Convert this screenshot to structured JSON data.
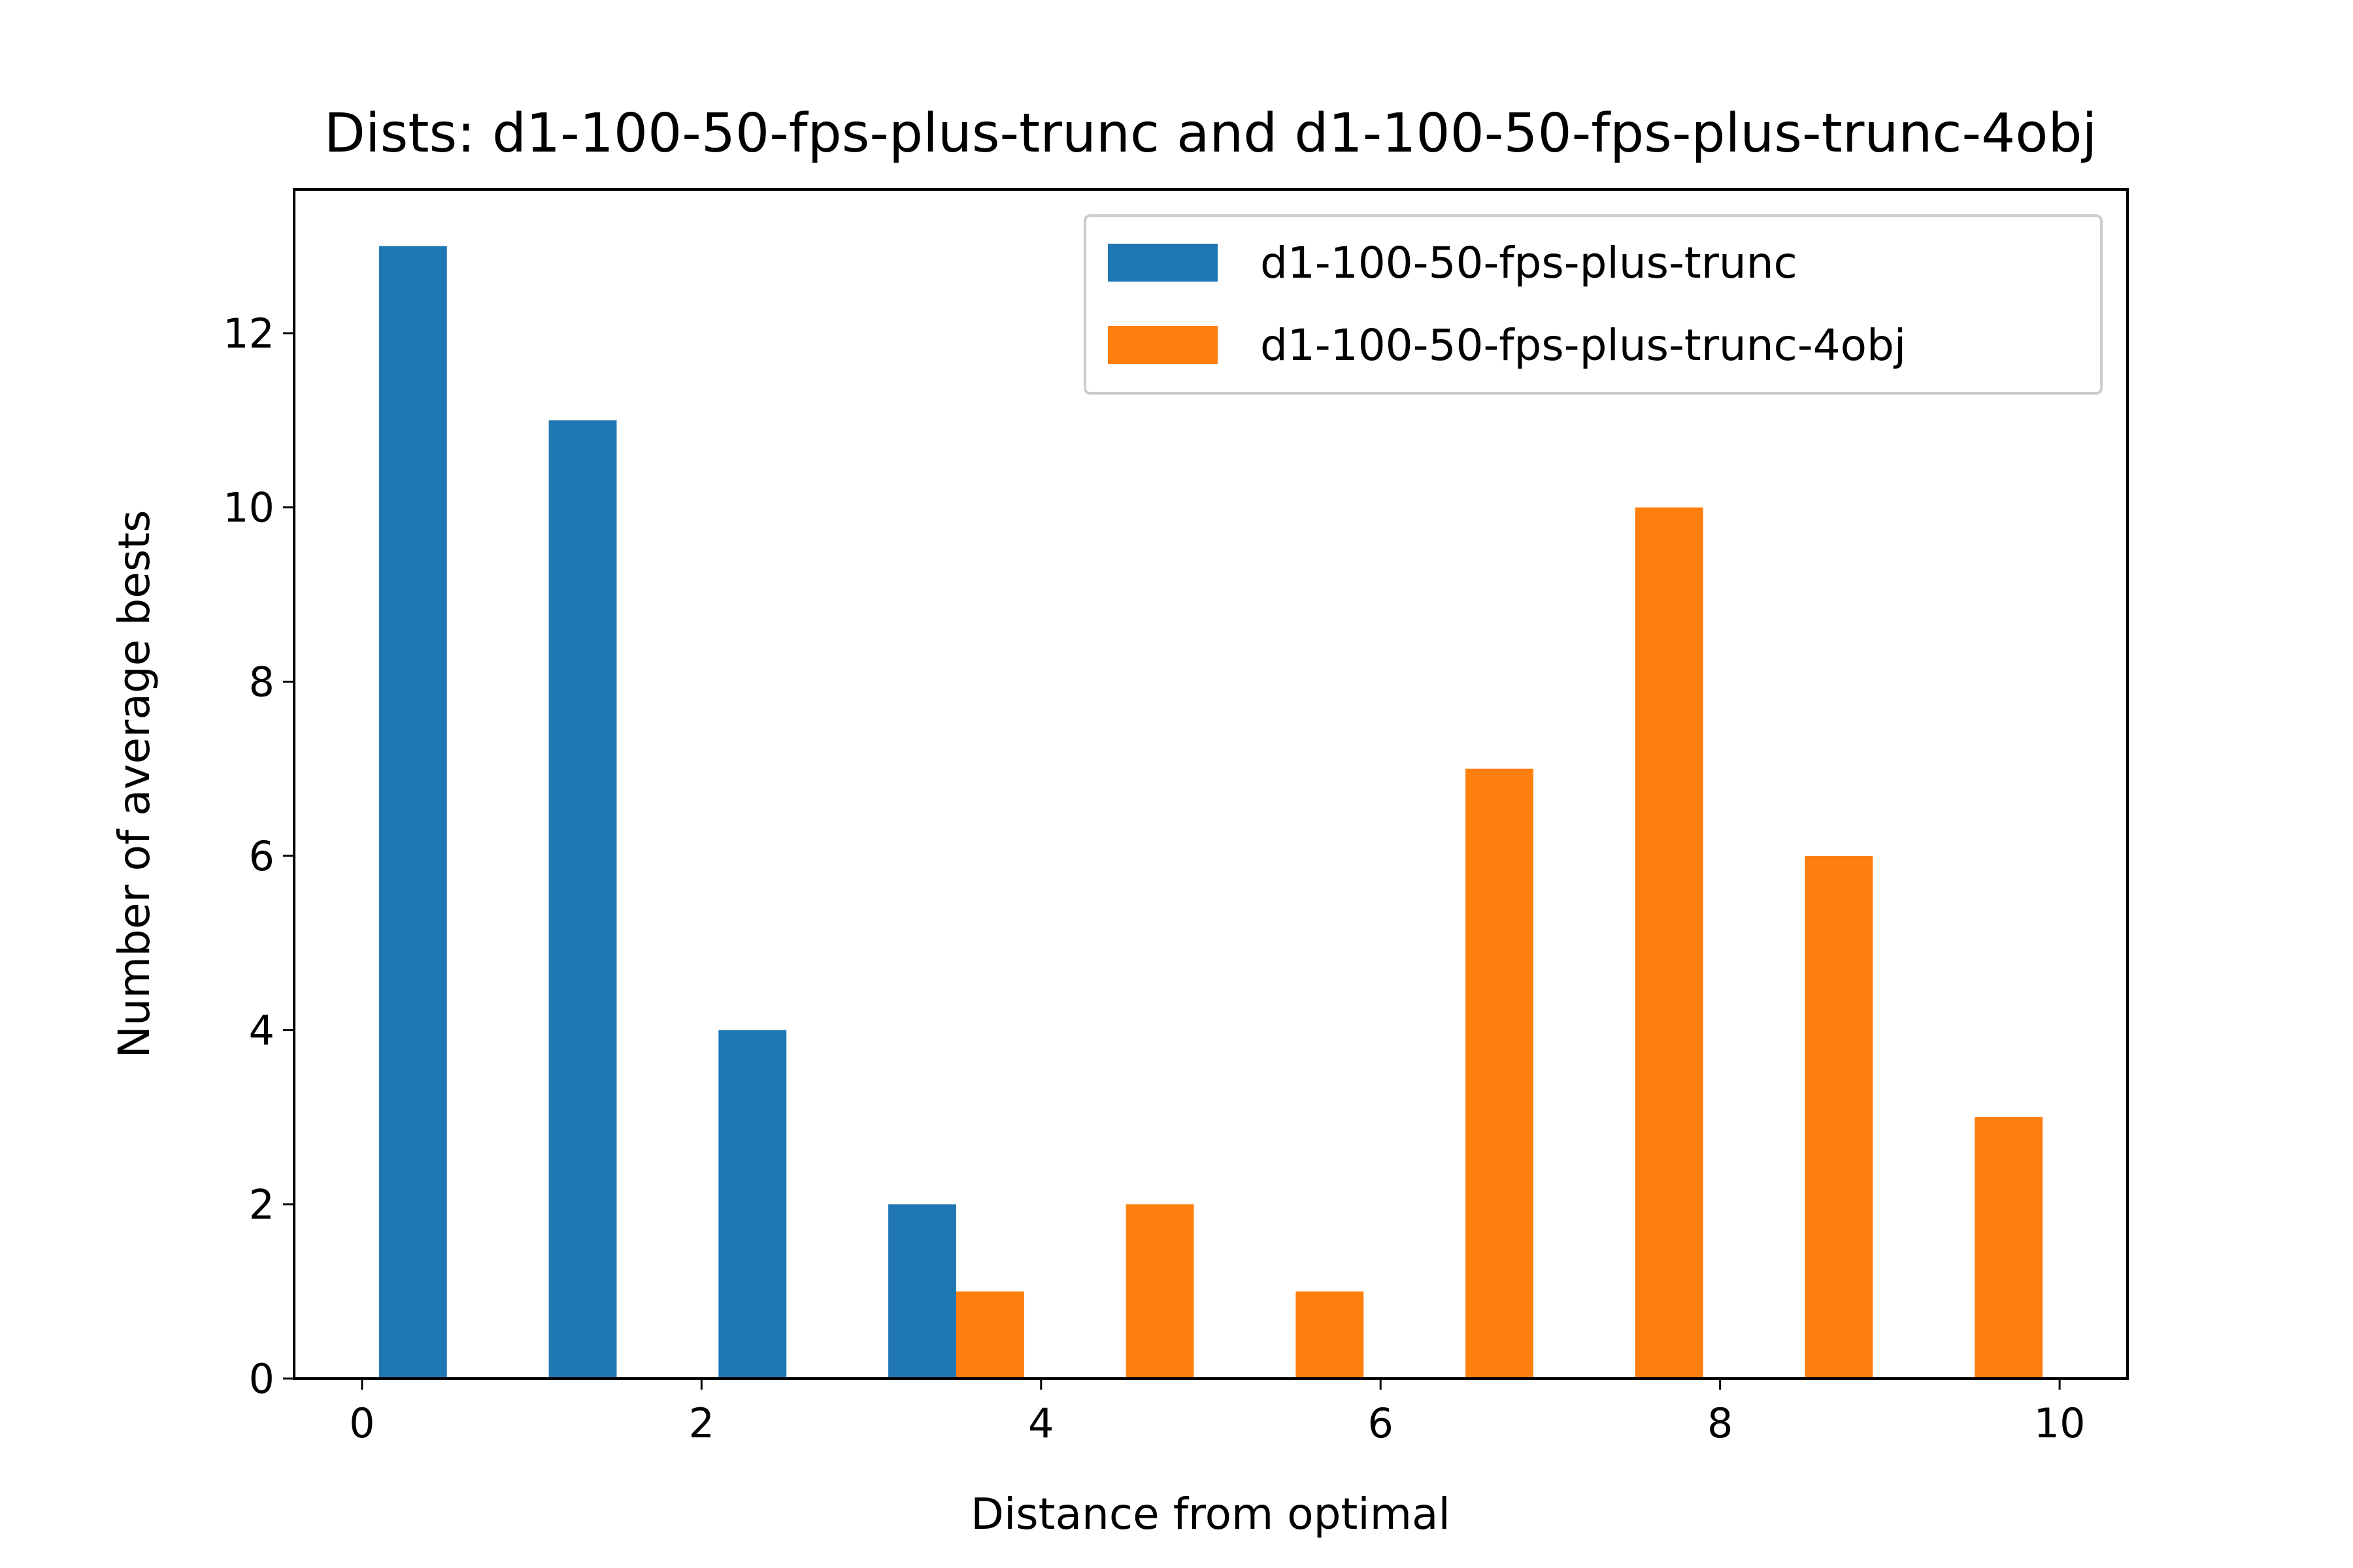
{
  "chart_data": {
    "type": "bar",
    "title": "Dists: d1-100-50-fps-plus-trunc and d1-100-50-fps-plus-trunc-4obj",
    "xlabel": "Distance from optimal",
    "ylabel": "Number of average bests",
    "xlim": [
      -0.4,
      10.4
    ],
    "ylim": [
      0,
      13.65
    ],
    "xticks": [
      0,
      2,
      4,
      6,
      8,
      10
    ],
    "yticks": [
      0,
      2,
      4,
      6,
      8,
      10,
      12
    ],
    "bar_width": 0.4,
    "legend_position": "top-right",
    "grid": false,
    "series": [
      {
        "name": "d1-100-50-fps-plus-trunc",
        "color": "#1f77b4",
        "x": [
          0.3,
          1.3,
          2.3,
          3.3
        ],
        "values": [
          13,
          11,
          4,
          2
        ]
      },
      {
        "name": "d1-100-50-fps-plus-trunc-4obj",
        "color": "#ff7f0e",
        "x": [
          3.7,
          4.7,
          5.7,
          6.7,
          7.7,
          8.7,
          9.7
        ],
        "values": [
          1,
          2,
          1,
          7,
          10,
          6,
          3
        ]
      }
    ]
  }
}
